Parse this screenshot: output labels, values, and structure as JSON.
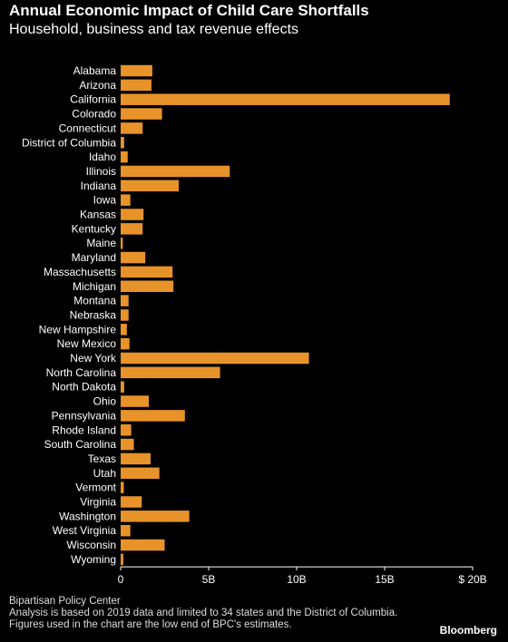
{
  "header": {
    "title": "Annual Economic Impact of Child Care Shortfalls",
    "subtitle": "Household, business and tax revenue effects"
  },
  "footer": {
    "source": "Bipartisan Policy Center",
    "note": "Analysis is based on 2019 data and limited to 34 states and the District of Columbia. Figures used in the chart are the low end of BPC's estimates.",
    "brand": "Bloomberg"
  },
  "colors": {
    "bar": "#e8932a",
    "background": "#000000",
    "text": "#ffffff",
    "axis": "#ffffff"
  },
  "chart_data": {
    "type": "bar",
    "orientation": "horizontal",
    "title": "Annual Economic Impact of Child Care Shortfalls",
    "subtitle": "Household, business and tax revenue effects",
    "xlabel": "",
    "ylabel": "",
    "xlim": [
      0,
      20
    ],
    "xticks": [
      0,
      5,
      10,
      15,
      20
    ],
    "xtick_labels": [
      "0",
      "5B",
      "10B",
      "15B",
      "$ 20B"
    ],
    "grid": false,
    "categories": [
      "Alabama",
      "Arizona",
      "California",
      "Colorado",
      "Connecticut",
      "District of Columbia",
      "Idaho",
      "Illinois",
      "Indiana",
      "Iowa",
      "Kansas",
      "Kentucky",
      "Maine",
      "Maryland",
      "Massachusetts",
      "Michigan",
      "Montana",
      "Nebraska",
      "New Hampshire",
      "New Mexico",
      "New York",
      "North Carolina",
      "North Dakota",
      "Ohio",
      "Pennsylvania",
      "Rhode Island",
      "South Carolina",
      "Texas",
      "Utah",
      "Vermont",
      "Virginia",
      "Washington",
      "West Virginia",
      "Wisconsin",
      "Wyoming"
    ],
    "values": [
      1.8,
      1.75,
      18.7,
      2.35,
      1.25,
      0.2,
      0.4,
      6.2,
      3.3,
      0.55,
      1.3,
      1.25,
      0.12,
      1.4,
      2.95,
      3.0,
      0.45,
      0.45,
      0.35,
      0.5,
      10.7,
      5.65,
      0.2,
      1.6,
      3.65,
      0.6,
      0.75,
      1.7,
      2.2,
      0.18,
      1.2,
      3.9,
      0.55,
      2.5,
      0.15
    ],
    "units": "billions of dollars"
  }
}
